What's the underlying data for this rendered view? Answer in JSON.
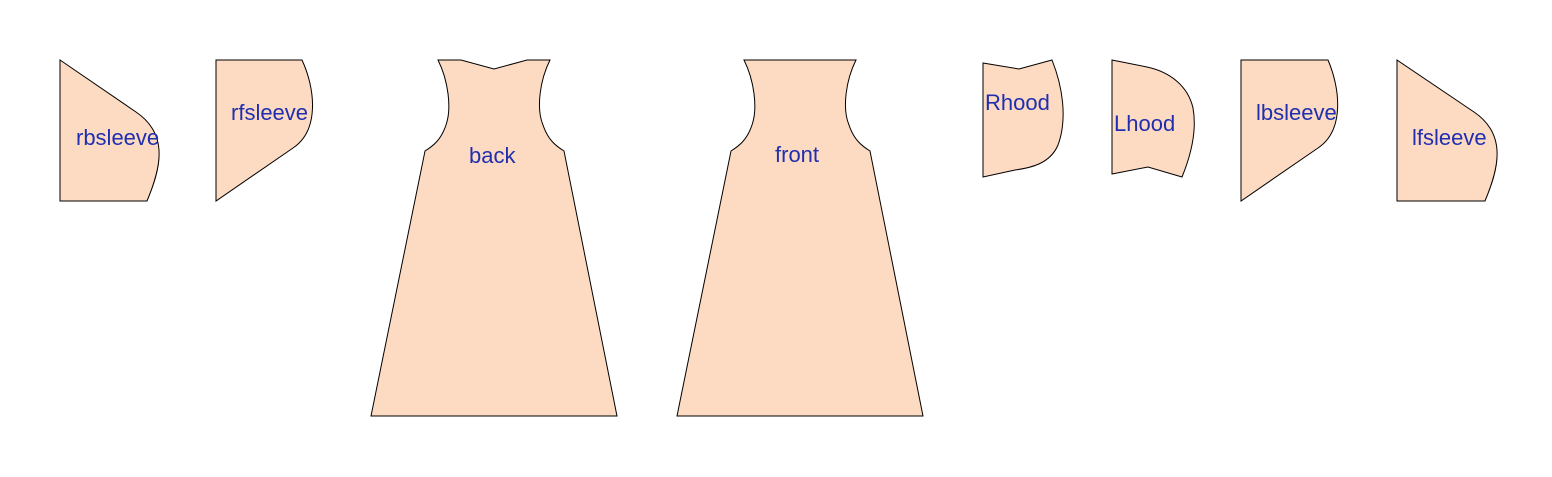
{
  "colors": {
    "piece_fill": "#fddac2",
    "piece_stroke": "#000000",
    "label_color": "#1f2fb0",
    "background": "#ffffff"
  },
  "pieces": {
    "rbsleeve": {
      "label": "rbsleeve"
    },
    "rfsleeve": {
      "label": "rfsleeve"
    },
    "back": {
      "label": "back"
    },
    "front": {
      "label": "front"
    },
    "rhood": {
      "label": "Rhood"
    },
    "lhood": {
      "label": "Lhood"
    },
    "lbsleeve": {
      "label": "lbsleeve"
    },
    "lfsleeve": {
      "label": "lfsleeve"
    }
  }
}
